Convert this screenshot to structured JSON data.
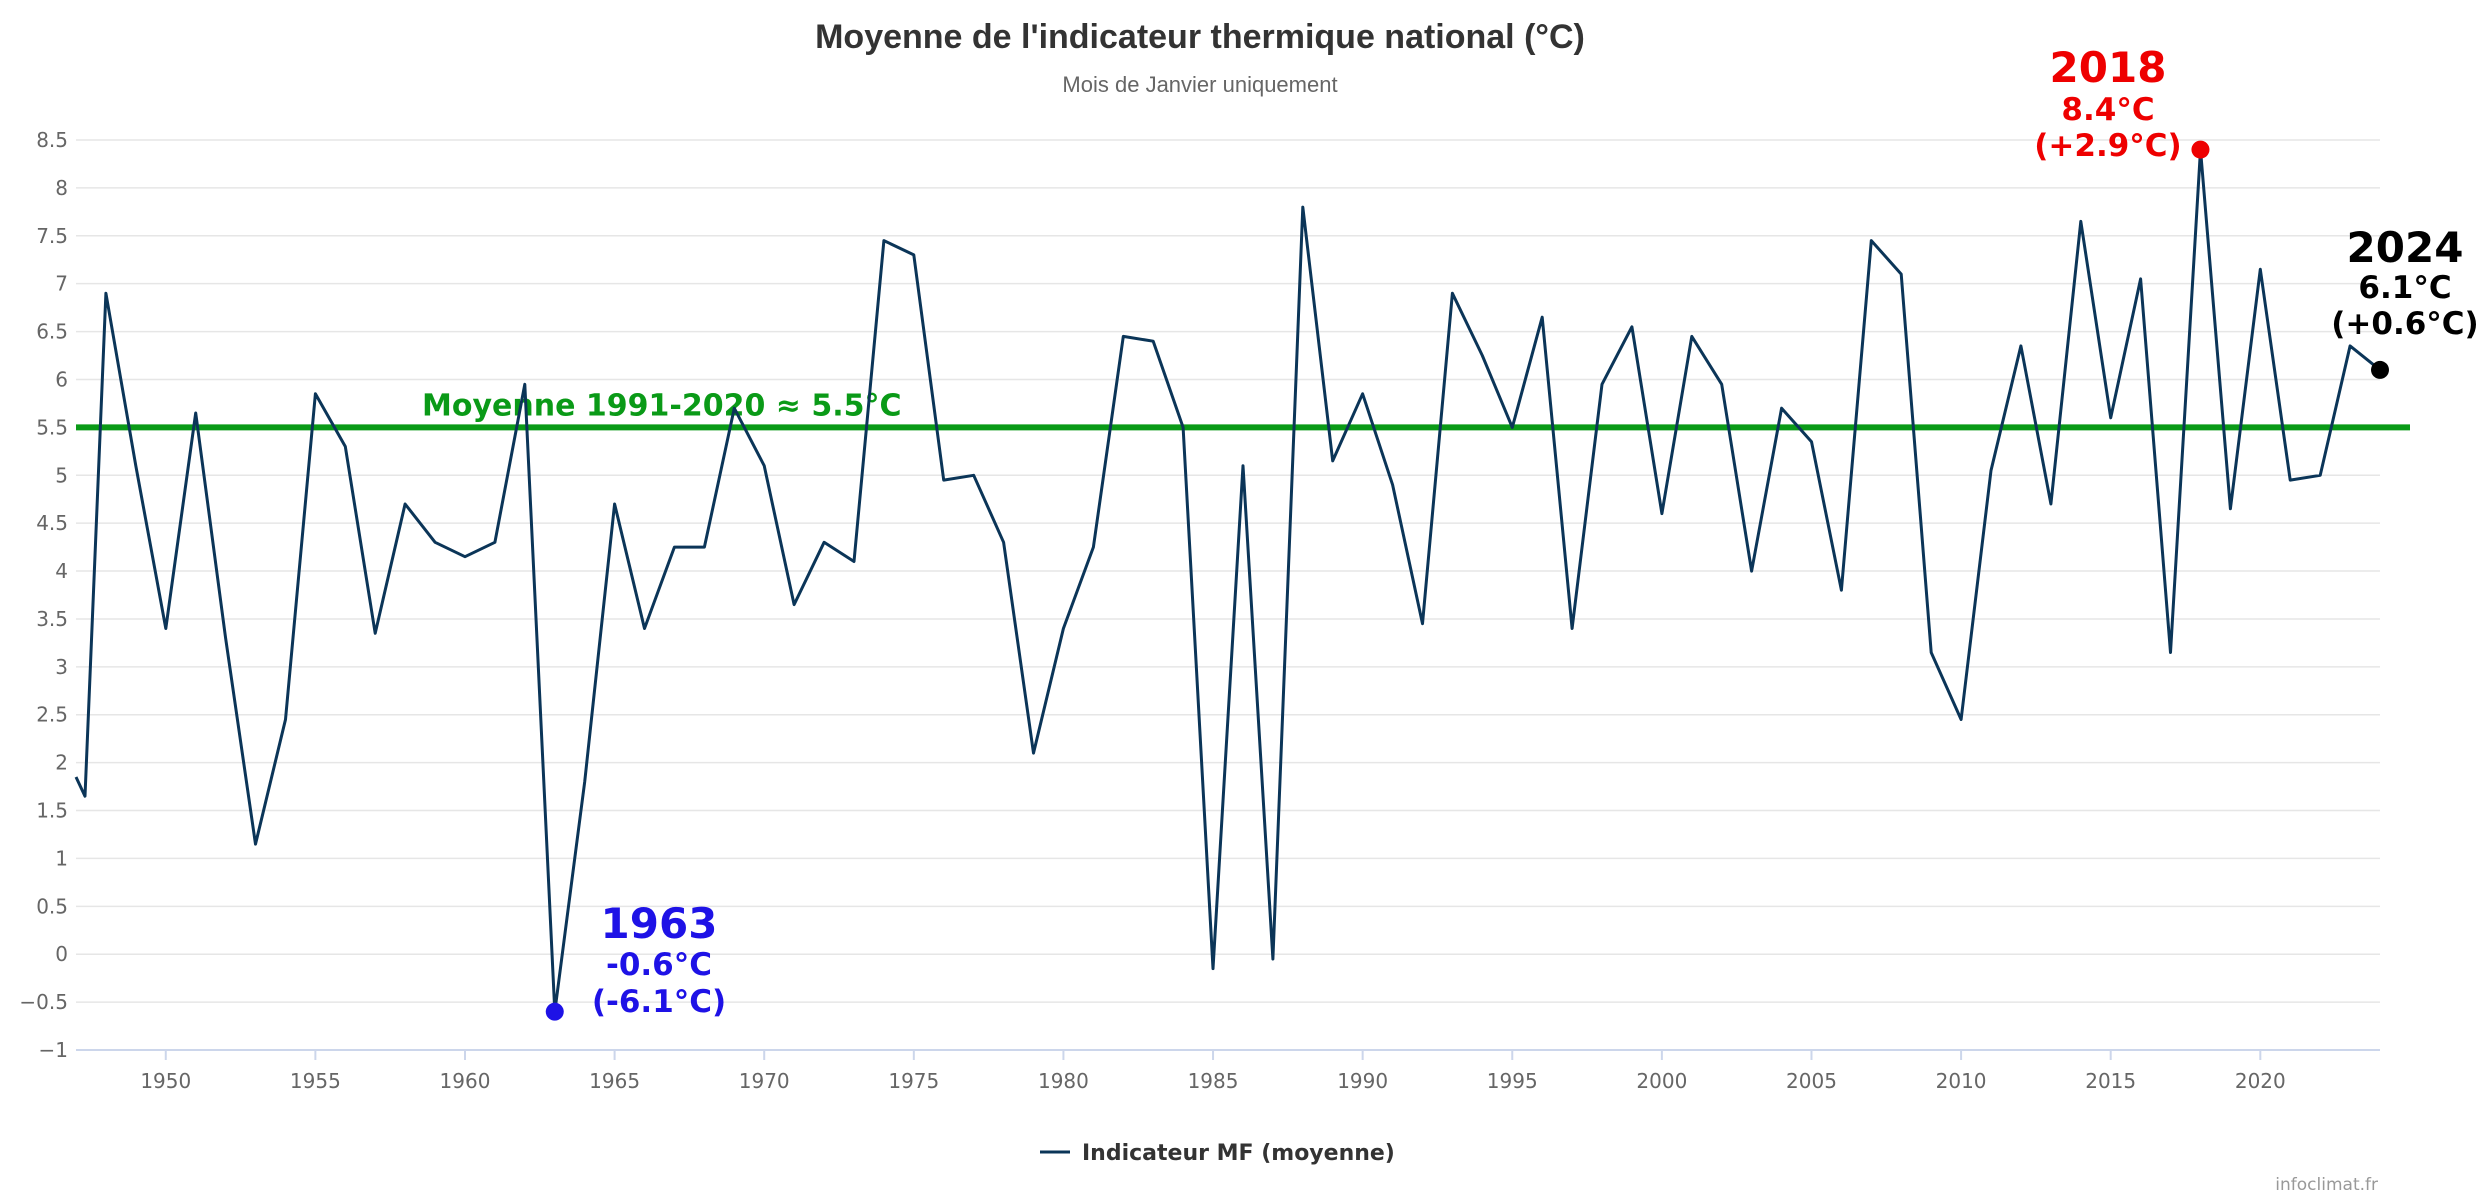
{
  "chart_data": {
    "type": "line",
    "title": "Moyenne de l'indicateur thermique national (°C)",
    "subtitle": "Mois de Janvier uniquement",
    "xlim": [
      1947,
      2024
    ],
    "ylim": [
      -1,
      8.5
    ],
    "x_ticks": [
      1950,
      1955,
      1960,
      1965,
      1970,
      1975,
      1980,
      1985,
      1990,
      1995,
      2000,
      2005,
      2010,
      2015,
      2020
    ],
    "y_ticks": [
      -1,
      -0.5,
      0,
      0.5,
      1,
      1.5,
      2,
      2.5,
      3,
      3.5,
      4,
      4.5,
      5,
      5.5,
      6,
      6.5,
      7,
      7.5,
      8,
      8.5
    ],
    "y_tick_labels": [
      "−1",
      "−0.5",
      "0",
      "0.5",
      "1",
      "1.5",
      "2",
      "2.5",
      "3",
      "3.5",
      "4",
      "4.5",
      "5",
      "5.5",
      "6",
      "6.5",
      "7",
      "7.5",
      "8",
      "8.5"
    ],
    "grid": true,
    "legend": "bottom-center",
    "series": [
      {
        "name": "Indicateur MF (moyenne)",
        "color": "#0b3558",
        "x": [
          1947,
          1947.3,
          1948,
          1949,
          1950,
          1951,
          1952,
          1953,
          1954,
          1955,
          1956,
          1957,
          1958,
          1959,
          1960,
          1961,
          1962,
          1963,
          1964,
          1965,
          1966,
          1967,
          1968,
          1969,
          1970,
          1971,
          1972,
          1973,
          1974,
          1975,
          1976,
          1977,
          1978,
          1979,
          1980,
          1981,
          1982,
          1983,
          1984,
          1985,
          1986,
          1987,
          1988,
          1989,
          1990,
          1991,
          1992,
          1993,
          1994,
          1995,
          1996,
          1997,
          1998,
          1999,
          2000,
          2001,
          2002,
          2003,
          2004,
          2005,
          2006,
          2007,
          2008,
          2009,
          2010,
          2011,
          2012,
          2013,
          2014,
          2015,
          2016,
          2017,
          2018,
          2019,
          2020,
          2021,
          2022,
          2023,
          2024
        ],
        "y": [
          1.85,
          1.65,
          6.9,
          5.1,
          3.4,
          5.65,
          3.3,
          1.15,
          2.45,
          5.85,
          5.3,
          3.35,
          4.7,
          4.3,
          4.15,
          4.3,
          5.95,
          -0.6,
          1.8,
          4.7,
          3.4,
          4.25,
          4.25,
          5.7,
          5.1,
          3.65,
          4.3,
          4.1,
          7.45,
          7.3,
          4.95,
          5.0,
          4.3,
          2.1,
          3.4,
          4.25,
          6.45,
          6.4,
          5.5,
          -0.15,
          5.1,
          -0.05,
          7.8,
          5.15,
          5.85,
          4.9,
          3.45,
          6.9,
          6.25,
          5.5,
          6.65,
          3.4,
          5.95,
          6.55,
          4.6,
          6.45,
          5.95,
          4.0,
          5.7,
          5.35,
          3.8,
          7.45,
          7.1,
          3.15,
          2.45,
          5.05,
          6.35,
          4.7,
          7.65,
          5.6,
          7.05,
          3.15,
          8.4,
          4.65,
          7.15,
          4.95,
          5.0,
          6.35,
          6.1
        ]
      }
    ],
    "reference_line": {
      "y": 5.5,
      "label": "Moyenne 1991-2020 ≈ 5.5°C",
      "color": "#0a9a17"
    },
    "annotations": [
      {
        "id": "2018",
        "x": 2018,
        "y": 8.4,
        "year": "2018",
        "value": "8.4°C",
        "anomaly": "(+2.9°C)",
        "color": "#ee0000"
      },
      {
        "id": "1963",
        "x": 1963,
        "y": -0.6,
        "year": "1963",
        "value": "-0.6°C",
        "anomaly": "(-6.1°C)",
        "color": "#1e12e6"
      },
      {
        "id": "2024",
        "x": 2024,
        "y": 6.1,
        "year": "2024",
        "value": "6.1°C",
        "anomaly": "(+0.6°C)",
        "color": "#000000"
      }
    ],
    "credits": "infoclimat.fr"
  }
}
